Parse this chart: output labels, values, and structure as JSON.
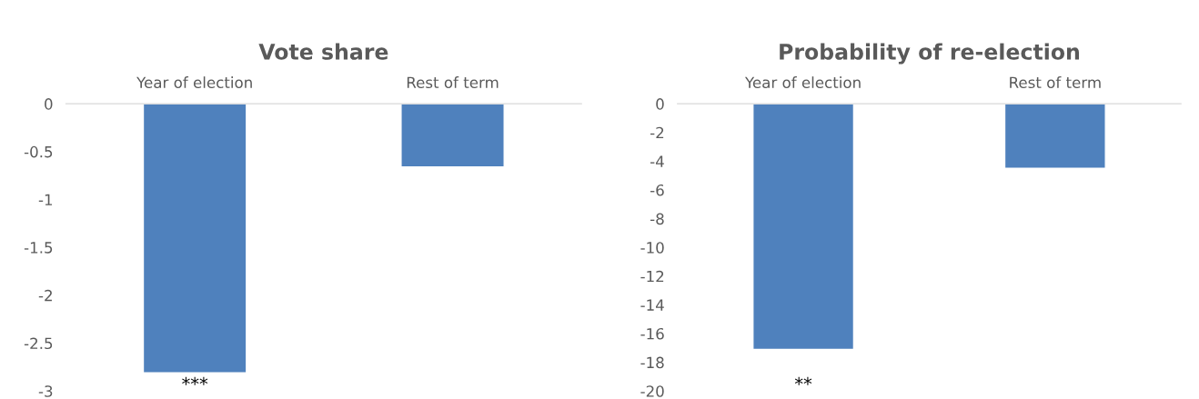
{
  "chart_data": [
    {
      "type": "bar",
      "title": "Vote share",
      "categories": [
        "Year of election",
        "Rest of term"
      ],
      "values": [
        -2.81,
        -0.66
      ],
      "color": "#4f81bd",
      "ylim": [
        -3,
        0
      ],
      "yticks": [
        0,
        -0.5,
        -1,
        -1.5,
        -2,
        -2.5,
        -3
      ],
      "grid": false,
      "annotations": [
        "***"
      ]
    },
    {
      "type": "bar",
      "title": "Probability of re-election",
      "categories": [
        "Year of election",
        "Rest of term"
      ],
      "values": [
        -17.1,
        -4.5
      ],
      "color": "#4f81bd",
      "ylim": [
        -20,
        0
      ],
      "yticks": [
        0,
        -2,
        -4,
        -6,
        -8,
        -10,
        -12,
        -14,
        -16,
        -18,
        -20
      ],
      "grid": false,
      "annotations": [
        "**"
      ]
    }
  ]
}
